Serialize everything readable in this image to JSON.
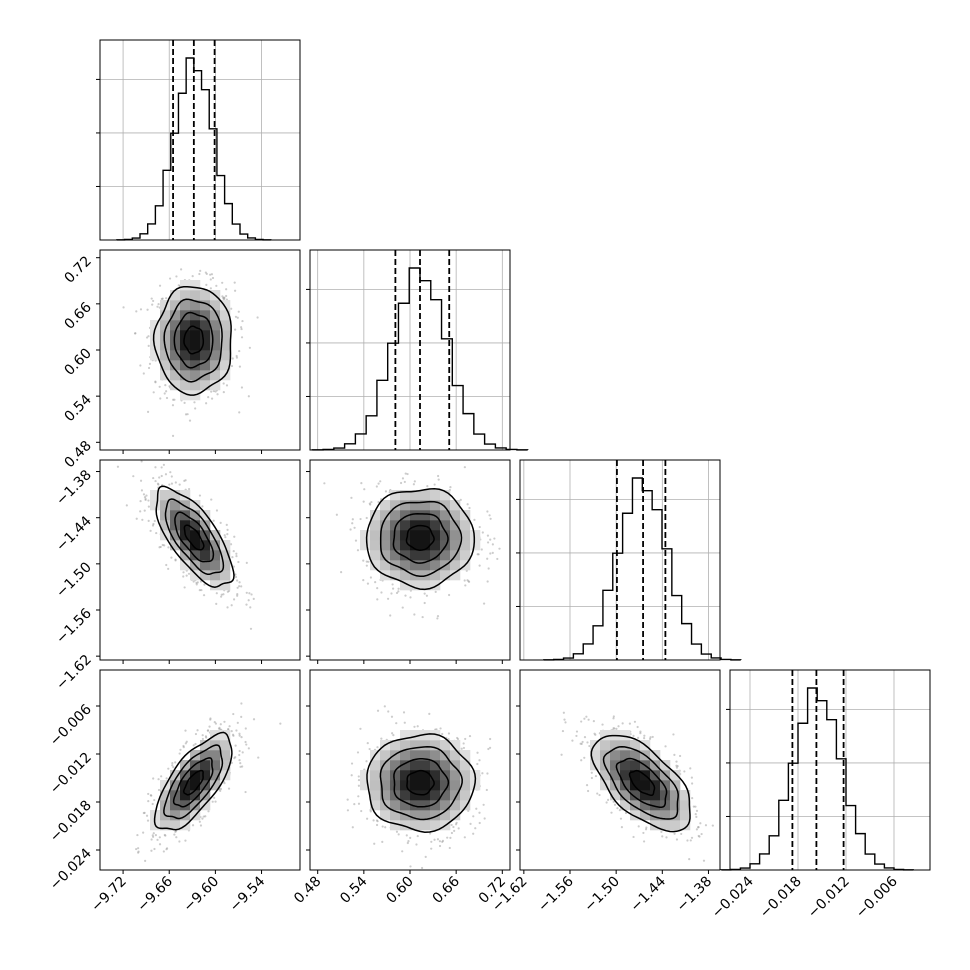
{
  "chart_data": {
    "type": "corner",
    "parameters": [
      {
        "lim": [
          -9.75,
          -9.49
        ],
        "ticks": [
          "−9.72",
          "−9.66",
          "−9.60",
          "−9.54"
        ],
        "tick_values": [
          -9.72,
          -9.66,
          -9.6,
          -9.54
        ],
        "quantiles": [
          -9.655,
          -9.628,
          -9.601
        ],
        "mean": -9.628,
        "sd": 0.025
      },
      {
        "lim": [
          0.47,
          0.73
        ],
        "ticks": [
          "0.48",
          "0.54",
          "0.60",
          "0.66",
          "0.72"
        ],
        "tick_values": [
          0.48,
          0.54,
          0.6,
          0.66,
          0.72
        ],
        "quantiles": [
          0.581,
          0.613,
          0.651
        ],
        "mean": 0.613,
        "sd": 0.035
      },
      {
        "lim": [
          -1.625,
          -1.365
        ],
        "ticks": [
          "−1.62",
          "−1.56",
          "−1.50",
          "−1.44",
          "−1.38"
        ],
        "tick_values": [
          -1.62,
          -1.56,
          -1.5,
          -1.44,
          -1.38
        ],
        "quantiles": [
          -1.499,
          -1.465,
          -1.436
        ],
        "mean": -1.466,
        "sd": 0.032
      },
      {
        "lim": [
          -0.0265,
          -0.0015
        ],
        "ticks": [
          "−0.024",
          "−0.018",
          "−0.012",
          "−0.006"
        ],
        "tick_values": [
          -0.024,
          -0.018,
          -0.012,
          -0.006
        ],
        "quantiles": [
          -0.0187,
          -0.0157,
          -0.0123
        ],
        "mean": -0.0156,
        "sd": 0.003
      }
    ],
    "correlations": [
      [
        1,
        0,
        -0.7,
        0.7
      ],
      [
        0,
        1,
        0,
        0
      ],
      [
        -0.7,
        0,
        1,
        -0.6
      ],
      [
        0.7,
        0,
        -0.6,
        1
      ]
    ],
    "histogram_bins": 20,
    "contour_levels": [
      "0.5 sigma",
      "1 sigma",
      "1.5 sigma",
      "2 sigma"
    ],
    "grid": true,
    "quantile_lines": "dashed"
  }
}
